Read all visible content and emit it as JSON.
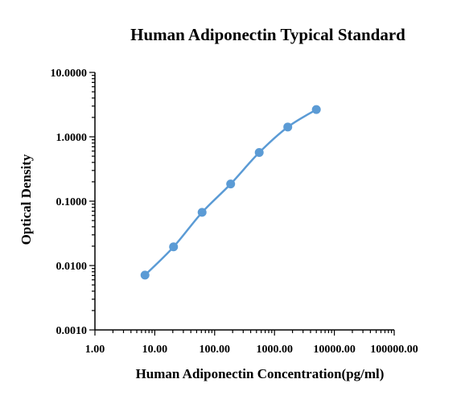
{
  "chart_data": {
    "type": "line",
    "title": "Human Adiponectin Typical Standard",
    "xlabel": "Human Adiponectin Concentration(pg/ml)",
    "ylabel": "Optical Density",
    "x_scale": "log",
    "y_scale": "log",
    "xlim": [
      1,
      100000
    ],
    "ylim": [
      0.001,
      10
    ],
    "x_ticks": [
      "1.00",
      "10.00",
      "100.00",
      "1000.00",
      "10000.00",
      "100000.00"
    ],
    "y_ticks": [
      "0.0010",
      "0.0100",
      "0.1000",
      "1.0000",
      "10.0000"
    ],
    "grid": false,
    "series": [
      {
        "color": "#5b9bd5",
        "x": [
          6.86,
          20.58,
          61.73,
          185.19,
          555.56,
          1666.67,
          5000
        ],
        "y": [
          0.0071,
          0.0195,
          0.067,
          0.185,
          0.57,
          1.42,
          2.65
        ]
      }
    ]
  }
}
